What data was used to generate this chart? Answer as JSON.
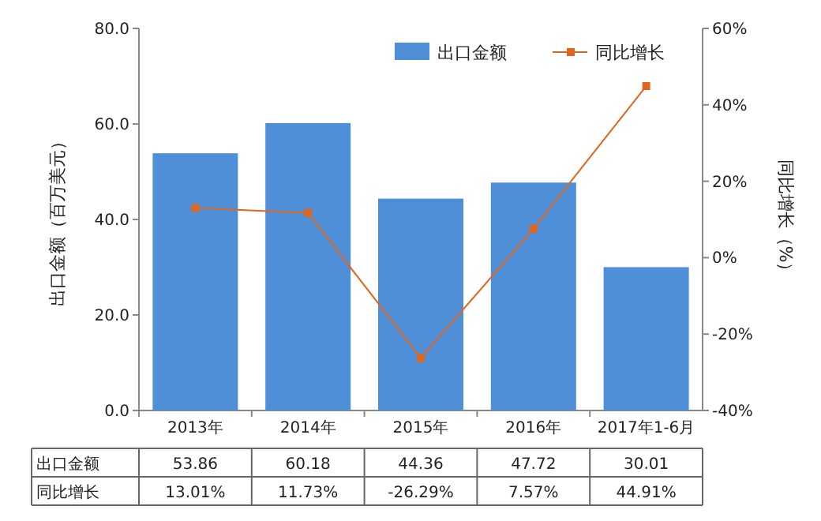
{
  "chart_data": {
    "type": "bar",
    "categories": [
      "2013年",
      "2014年",
      "2015年",
      "2016年",
      "2017年1-6月"
    ],
    "series": [
      {
        "name": "出口金额",
        "color": "#4f8fd8",
        "values": [
          53.86,
          60.18,
          44.36,
          47.72,
          30.01
        ],
        "value_labels": [
          "53.86",
          "60.18",
          "44.36",
          "47.72",
          "30.01"
        ]
      },
      {
        "name": "同比增长",
        "type": "line",
        "axis": "y2",
        "color": "#e0661c",
        "marker": "square",
        "values": [
          13.01,
          11.73,
          -26.29,
          7.57,
          44.91
        ],
        "value_labels": [
          "13.01%",
          "11.73%",
          "-26.29%",
          "7.57%",
          "44.91%"
        ]
      }
    ],
    "ylabel": "出口金额（百万美元）",
    "y2label": "同比增长（%）",
    "ylim": [
      0,
      80
    ],
    "yticks": [
      {
        "value": 0,
        "label": "0.0"
      },
      {
        "value": 20,
        "label": "20.0"
      },
      {
        "value": 40,
        "label": "40.0"
      },
      {
        "value": 60,
        "label": "60.0"
      },
      {
        "value": 80,
        "label": "80.0"
      }
    ],
    "y2lim": [
      -40,
      60
    ],
    "y2ticks": [
      {
        "value": -40,
        "label": "-40%"
      },
      {
        "value": -20,
        "label": "-20%"
      },
      {
        "value": 0,
        "label": "0%"
      },
      {
        "value": 20,
        "label": "20%"
      },
      {
        "value": 40,
        "label": "40%"
      },
      {
        "value": 60,
        "label": "60%"
      }
    ],
    "legend": "top right"
  }
}
